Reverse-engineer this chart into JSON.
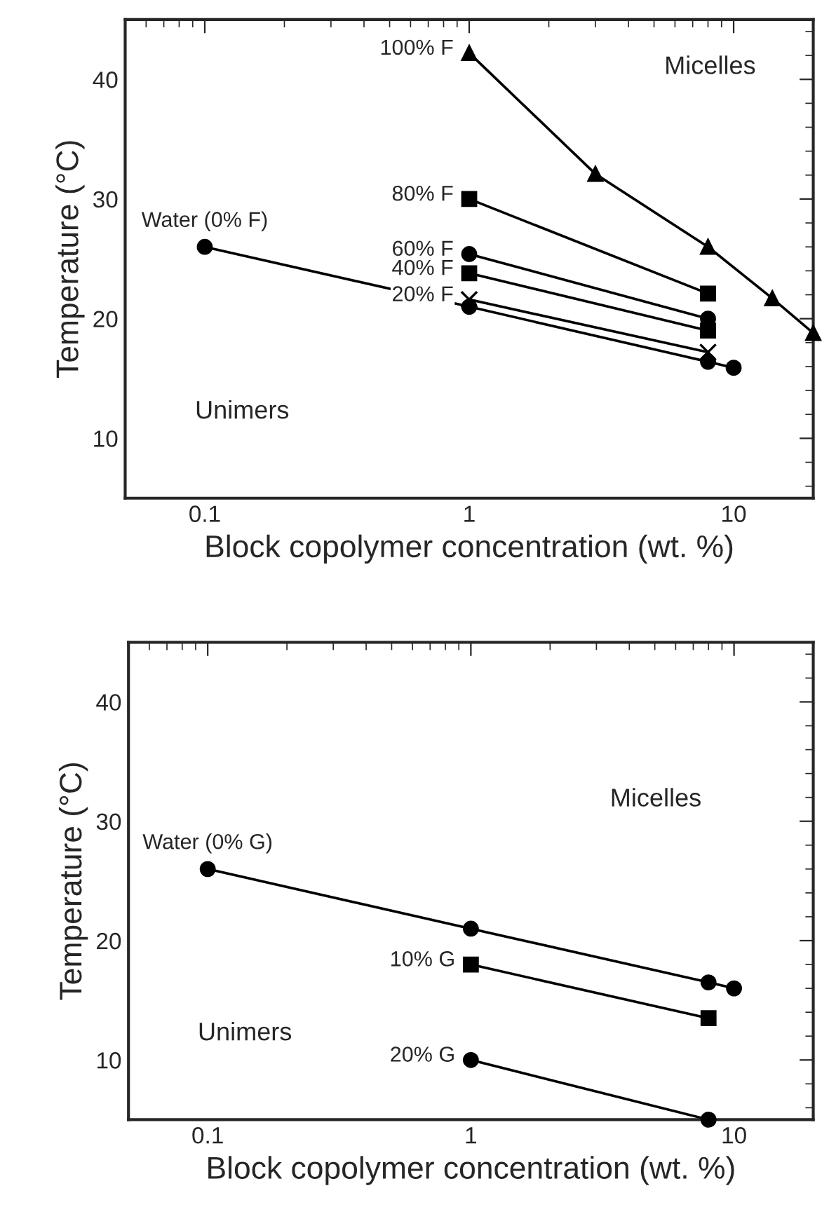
{
  "chart_data": [
    {
      "type": "line",
      "xlabel": "Block copolymer concentration (wt. %)",
      "ylabel": "Temperature (°C)",
      "log": "x",
      "xlim": [
        0.05,
        20
      ],
      "xticks": [
        0.1,
        1,
        10
      ],
      "ylim": [
        5,
        45
      ],
      "yticks": [
        10,
        20,
        30,
        40
      ],
      "grid": false,
      "legend": false,
      "line_style": "solid",
      "annotations": [
        "Micelles",
        "Unimers"
      ],
      "series": [
        {
          "name": "100% F",
          "color": "#000000",
          "marker": "triangle",
          "x": [
            1,
            3,
            8,
            14,
            20
          ],
          "values": [
            42.2,
            32.1,
            26,
            21.7,
            18.8
          ]
        },
        {
          "name": "80% F",
          "color": "#000000",
          "marker": "square",
          "x": [
            1,
            8
          ],
          "values": [
            30,
            22.1
          ]
        },
        {
          "name": "60% F",
          "color": "#000000",
          "marker": "circle",
          "x": [
            1,
            8
          ],
          "values": [
            25.4,
            20
          ]
        },
        {
          "name": "40% F",
          "color": "#000000",
          "marker": "square",
          "x": [
            1,
            8
          ],
          "values": [
            23.8,
            19
          ]
        },
        {
          "name": "20% F",
          "color": "#000000",
          "marker": "cross",
          "x": [
            1,
            8
          ],
          "values": [
            21.6,
            17.2
          ]
        },
        {
          "name": "Water (0% F)",
          "color": "#000000",
          "marker": "circle",
          "x": [
            0.1,
            1,
            8,
            10
          ],
          "values": [
            26,
            21,
            16.4,
            15.9
          ]
        }
      ]
    },
    {
      "type": "line",
      "xlabel": "Block copolymer concentration (wt. %)",
      "ylabel": "Temperature (°C)",
      "log": "x",
      "xlim": [
        0.05,
        20
      ],
      "xticks": [
        0.1,
        1,
        10
      ],
      "ylim": [
        5,
        45
      ],
      "yticks": [
        10,
        20,
        30,
        40
      ],
      "grid": false,
      "legend": false,
      "line_style": "solid",
      "annotations": [
        "Micelles",
        "Unimers"
      ],
      "series": [
        {
          "name": "Water (0% G)",
          "color": "#000000",
          "marker": "circle",
          "x": [
            0.1,
            1,
            8,
            10
          ],
          "values": [
            26,
            21,
            16.5,
            16
          ]
        },
        {
          "name": "10% G",
          "color": "#000000",
          "marker": "square",
          "x": [
            1,
            8
          ],
          "values": [
            18,
            13.5
          ]
        },
        {
          "name": "20% G",
          "color": "#000000",
          "marker": "circle",
          "x": [
            1,
            8
          ],
          "values": [
            10,
            5
          ]
        }
      ]
    }
  ]
}
